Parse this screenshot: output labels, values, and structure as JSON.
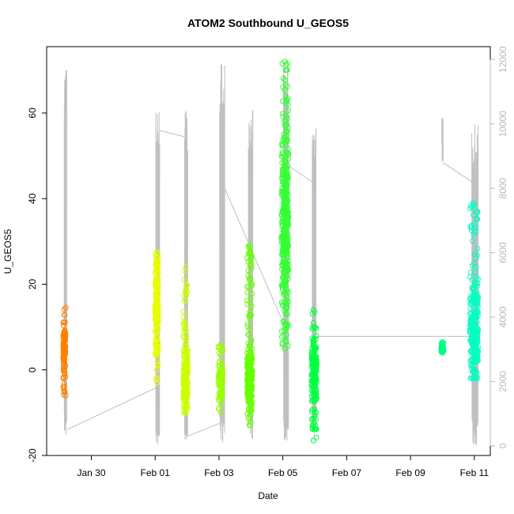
{
  "chart_data": {
    "type": "scatter",
    "title": "ATOM2 Southbound U_GEOS5",
    "xlabel": "Date",
    "ylabel": "U_GEOS5",
    "x_ticks": [
      {
        "day": 29.6,
        "label": "Jan 30"
      },
      {
        "day": 31.6,
        "label": "Feb 01"
      },
      {
        "day": 33.6,
        "label": "Feb 03"
      },
      {
        "day": 35.6,
        "label": "Feb 05"
      },
      {
        "day": 37.6,
        "label": "Feb 07"
      },
      {
        "day": 39.6,
        "label": "Feb 09"
      },
      {
        "day": 41.6,
        "label": "Feb 11"
      }
    ],
    "xlim": [
      28.2,
      42.1
    ],
    "ylim": [
      -20,
      75.5
    ],
    "y_ticks": [
      -20,
      0,
      20,
      40,
      60
    ],
    "y2lim": [
      -300,
      12400
    ],
    "y2_ticks": [
      0,
      2000,
      4000,
      6000,
      8000,
      10000,
      12000
    ],
    "right_axis_color": "#b8b8b8",
    "altitude_color": "#c0c0c0",
    "grid": false,
    "flights": [
      {
        "x": 28.8,
        "xs": [
          28.72,
          28.79
        ],
        "color": "#ff8000",
        "ymin": -6,
        "ymax": 14.5,
        "center": 5,
        "spread": 3
      },
      {
        "x": 31.66,
        "xs": [
          31.6,
          31.7
        ],
        "color": "#e6ff00",
        "ymin": -3,
        "ymax": 27.5,
        "center": 14,
        "spread": 9
      },
      {
        "x": 32.56,
        "xs": [
          32.48,
          32.62
        ],
        "color": "#ccff00",
        "ymin": -10,
        "ymax": 24,
        "center": -2,
        "spread": 6
      },
      {
        "x": 33.66,
        "xs": [
          33.58,
          33.72
        ],
        "color": "#99ff00",
        "ymin": -10,
        "ymax": 6,
        "center": -3,
        "spread": 4
      },
      {
        "x": 34.56,
        "xs": [
          34.48,
          34.64
        ],
        "color": "#66ff00",
        "ymin": -13,
        "ymax": 29,
        "center": -2,
        "spread": 6
      },
      {
        "x": 35.66,
        "xs": [
          35.56,
          35.78
        ],
        "color": "#33ff33",
        "ymin": 5,
        "ymax": 72,
        "center": 34,
        "spread": 18
      },
      {
        "x": 36.56,
        "xs": [
          36.5,
          36.66
        ],
        "color": "#00ff40",
        "ymin": -16.5,
        "ymax": 14,
        "center": 0,
        "spread": 7
      },
      {
        "x": 40.6,
        "xs": [
          40.56,
          40.64
        ],
        "color": "#00ff80",
        "ymin": 4,
        "ymax": 6.5,
        "center": 5,
        "spread": 0.8
      },
      {
        "x": 41.56,
        "xs": [
          41.46,
          41.72
        ],
        "color": "#00ffc0",
        "ymin": -2,
        "ymax": 39,
        "center": 10,
        "spread": 9
      }
    ],
    "altitude_segments": [
      {
        "x0": 28.75,
        "x1": 28.83,
        "peak": 11800,
        "low": 300
      },
      {
        "x0": 31.62,
        "x1": 31.74,
        "peak": 10500,
        "low": 0
      },
      {
        "x0": 32.52,
        "x1": 32.62,
        "peak": 10500,
        "low": 0
      },
      {
        "x0": 33.62,
        "x1": 33.78,
        "peak": 12000,
        "low": 100
      },
      {
        "x0": 34.52,
        "x1": 34.66,
        "peak": 10600,
        "low": 200
      },
      {
        "x0": 35.62,
        "x1": 35.78,
        "peak": 12000,
        "low": 0
      },
      {
        "x0": 36.52,
        "x1": 36.64,
        "peak": 10000,
        "low": 300
      },
      {
        "x0": 40.58,
        "x1": 40.62,
        "peak": 10200,
        "low": 8800
      },
      {
        "x0": 41.52,
        "x1": 41.72,
        "peak": 10000,
        "low": 0
      }
    ],
    "altitude_connectors": [
      [
        28.83,
        500,
        31.62,
        1800
      ],
      [
        31.74,
        9800,
        32.52,
        9600
      ],
      [
        32.62,
        300,
        33.62,
        700
      ],
      [
        33.78,
        8000,
        35.62,
        3800
      ],
      [
        34.66,
        1300,
        34.52,
        1400
      ],
      [
        35.78,
        8700,
        36.52,
        8200
      ],
      [
        36.64,
        3400,
        41.52,
        3400
      ],
      [
        40.62,
        8800,
        41.52,
        8200
      ]
    ]
  }
}
